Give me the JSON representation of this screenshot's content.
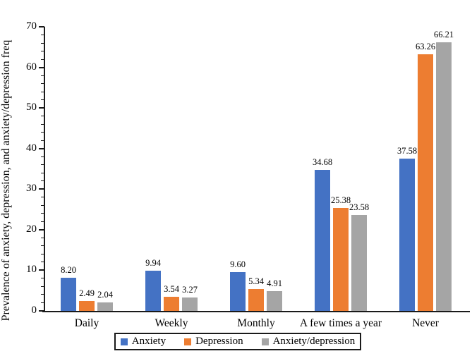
{
  "chart_data": {
    "type": "bar",
    "title": "",
    "xlabel": "",
    "ylabel": "Prevalence of anxiety, depression, and anxiety/depression freq",
    "ylim": [
      0,
      70
    ],
    "ytick_step": 10,
    "minor_tick_step": 2,
    "grid": false,
    "legend_position": "bottom",
    "value_label_decimals": 2,
    "categories": [
      "Daily",
      "Weekly",
      "Monthly",
      "A few times a year",
      "Never"
    ],
    "series": [
      {
        "name": "Anxiety",
        "color": "#4472C4",
        "values": [
          8.2,
          9.94,
          9.6,
          34.68,
          37.58
        ]
      },
      {
        "name": "Depression",
        "color": "#ED7D31",
        "values": [
          2.49,
          3.54,
          5.34,
          25.38,
          63.26
        ]
      },
      {
        "name": "Anxiety/depression",
        "color": "#A5A5A5",
        "values": [
          2.04,
          3.27,
          4.91,
          23.58,
          66.21
        ]
      }
    ]
  }
}
